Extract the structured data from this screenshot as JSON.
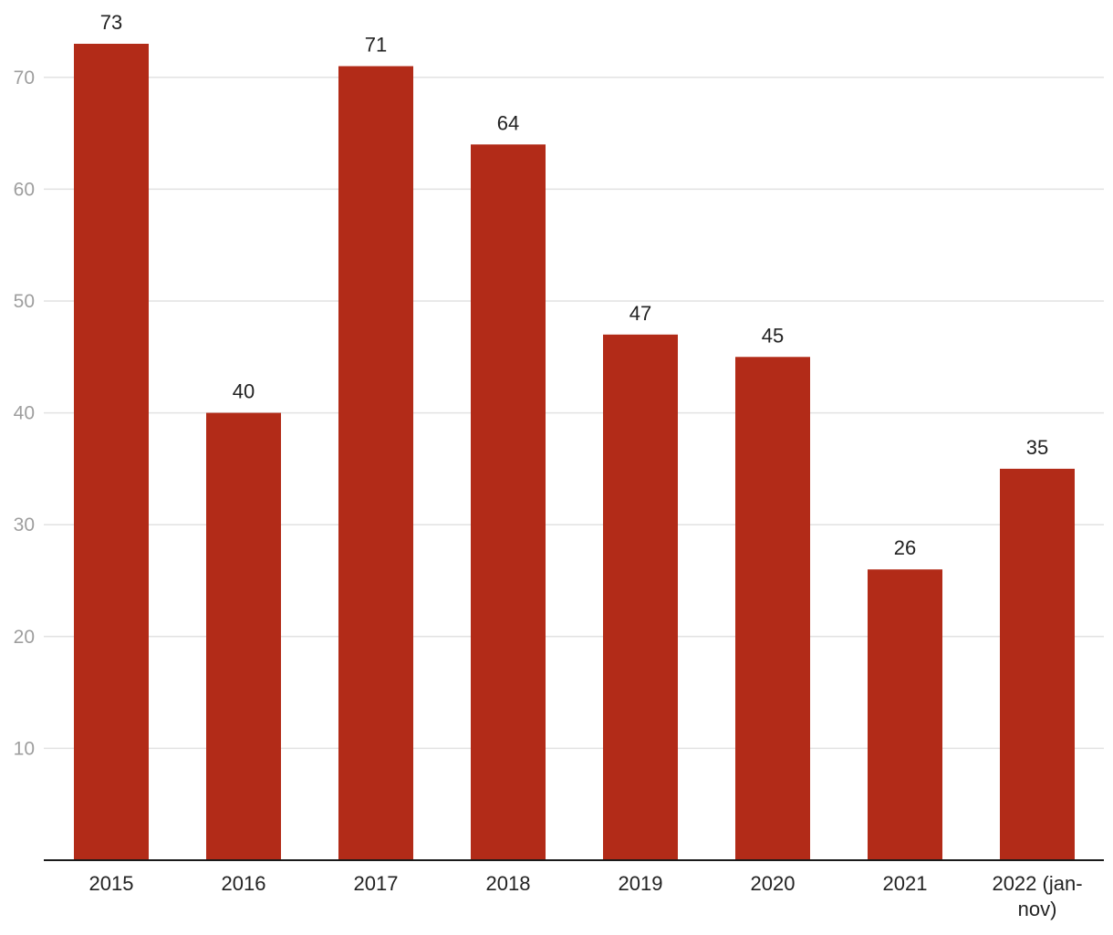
{
  "chart_data": {
    "type": "bar",
    "title": "",
    "xlabel": "",
    "ylabel": "",
    "categories": [
      "2015",
      "2016",
      "2017",
      "2018",
      "2019",
      "2020",
      "2021",
      "2022 (jan-nov)"
    ],
    "category_lines": [
      [
        "2015"
      ],
      [
        "2016"
      ],
      [
        "2017"
      ],
      [
        "2018"
      ],
      [
        "2019"
      ],
      [
        "2020"
      ],
      [
        "2021"
      ],
      [
        "2022 (jan-",
        "nov)"
      ]
    ],
    "values": [
      73,
      40,
      71,
      64,
      47,
      45,
      26,
      35
    ],
    "ylim": [
      0,
      73
    ],
    "yticks": [
      10,
      20,
      30,
      40,
      50,
      60,
      70
    ],
    "grid": true,
    "legend": "none",
    "data_labels": true,
    "colors": {
      "bar": "#b22b18",
      "grid": "#e2e2e2",
      "axis": "#1a1a1a",
      "tick_text": "#9e9e9e",
      "label_text": "#222222"
    }
  }
}
